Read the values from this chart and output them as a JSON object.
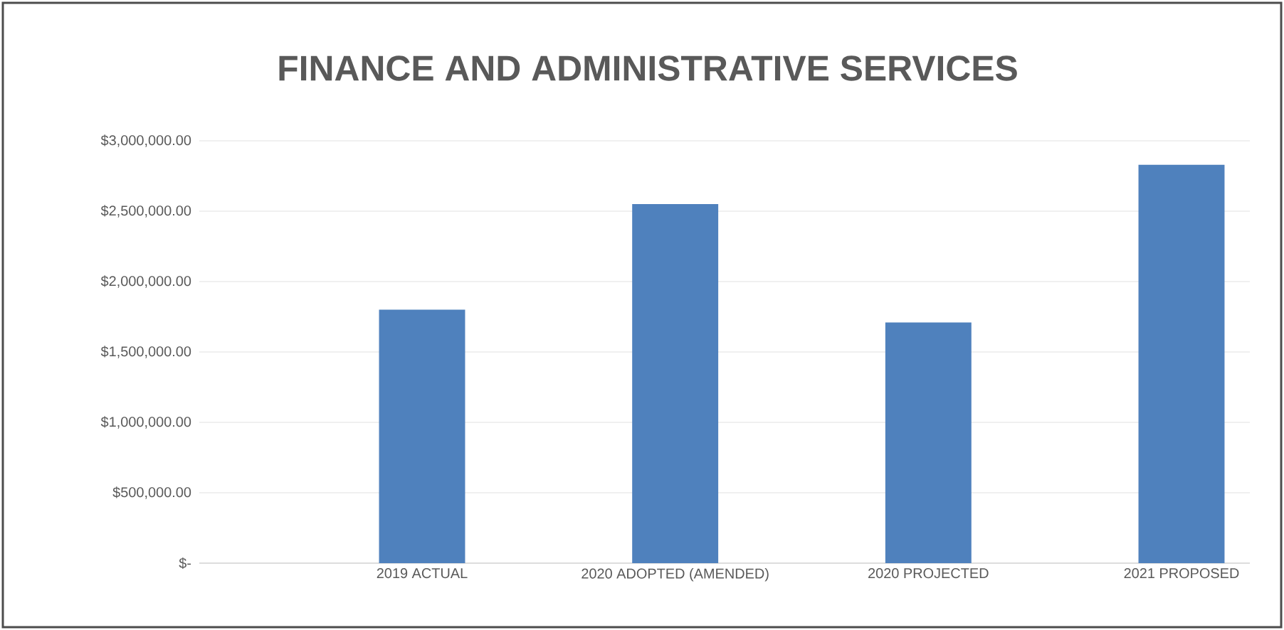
{
  "chart_data": {
    "type": "bar",
    "title": "FINANCE AND ADMINISTRATIVE SERVICES",
    "categories": [
      "2019 ACTUAL",
      "2020 ADOPTED (AMENDED)",
      "2020 PROJECTED",
      "2021 PROPOSED"
    ],
    "values": [
      1800000,
      2550000,
      1710000,
      2830000
    ],
    "color": "#4f81bd",
    "ylim": [
      0,
      3000000
    ],
    "yticks": [
      {
        "value": 0,
        "label": "$-"
      },
      {
        "value": 500000,
        "label": "$500,000.00"
      },
      {
        "value": 1000000,
        "label": "$1,000,000.00"
      },
      {
        "value": 1500000,
        "label": "$1,500,000.00"
      },
      {
        "value": 2000000,
        "label": "$2,000,000.00"
      },
      {
        "value": 2500000,
        "label": "$2,500,000.00"
      },
      {
        "value": 3000000,
        "label": "$3,000,000.00"
      }
    ],
    "grid": "y"
  }
}
